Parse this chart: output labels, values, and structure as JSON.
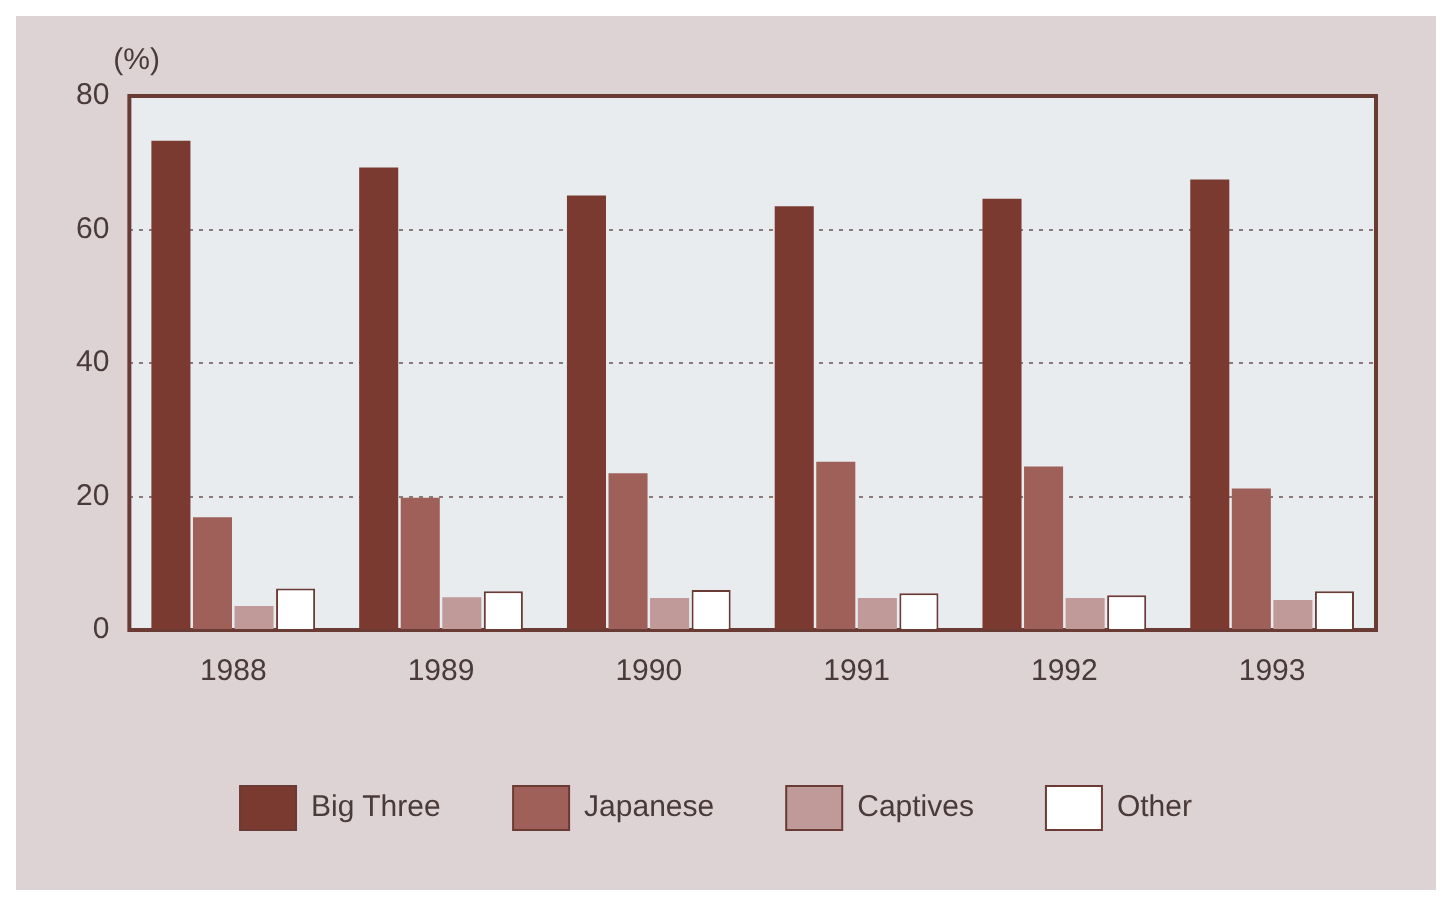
{
  "chart_data": {
    "type": "bar",
    "ylabel": "(%)",
    "categories": [
      "1988",
      "1989",
      "1990",
      "1991",
      "1992",
      "1993"
    ],
    "series": [
      {
        "name": "Big Three",
        "color": "#7a3a30",
        "values": [
          73.3,
          69.3,
          65.1,
          63.5,
          64.6,
          67.5
        ]
      },
      {
        "name": "Japanese",
        "color": "#a0605a",
        "values": [
          16.9,
          19.8,
          23.5,
          25.2,
          24.5,
          21.2
        ]
      },
      {
        "name": "Captives",
        "color": "#c09a98",
        "values": [
          3.6,
          4.9,
          4.8,
          4.8,
          4.8,
          4.5
        ]
      },
      {
        "name": "Other",
        "color": "#ffffff",
        "values": [
          6.2,
          5.8,
          6.0,
          5.5,
          5.2,
          5.8
        ]
      }
    ],
    "ylim": [
      0,
      80
    ],
    "yticks": [
      0,
      20,
      40,
      60,
      80
    ],
    "grid": "y",
    "legend": "bottom"
  }
}
